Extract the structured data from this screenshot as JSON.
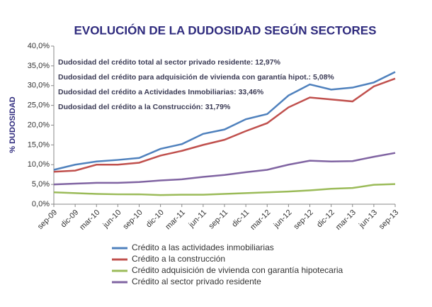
{
  "chart_data": {
    "type": "line",
    "title": "EVOLUCIÓN DE LA DUDOSIDAD SEGÚN SECTORES",
    "y_label": "% DUDOSIDAD",
    "annotations": [
      "Dudosidad del crédito total al sector privado residente: 12,97%",
      "Dudosidad del crédito para adquisición de vivienda con garantía hipot.: 5,08%",
      "Dudosidad del crédito a Actividades Inmobiliarias: 33,46%",
      "Dudosidad del crédito a la Construcción: 31,79%"
    ],
    "categories": [
      "sep-09",
      "dic-09",
      "mar-10",
      "jun-10",
      "sep-10",
      "dic-10",
      "mar-11",
      "jun-11",
      "sep-11",
      "dic-11",
      "mar-12",
      "jun-12",
      "sep-12",
      "dic-12",
      "mar-13",
      "jun-13",
      "sep-13"
    ],
    "series": [
      {
        "name": "Crédito a las actividades inmobiliarias",
        "color": "#4f81bd",
        "values": [
          8.7,
          10,
          10.8,
          11.2,
          11.7,
          14,
          15.2,
          17.8,
          18.9,
          21.5,
          22.8,
          27.5,
          30.3,
          29,
          29.5,
          30.8,
          33.46
        ]
      },
      {
        "name": "Crédito a la construcción",
        "color": "#c0504d",
        "values": [
          8.2,
          8.5,
          10,
          10,
          10.5,
          12.3,
          13.5,
          15,
          16.3,
          18.5,
          20.5,
          24.5,
          27,
          26.5,
          26,
          29.8,
          31.79
        ]
      },
      {
        "name": "Crédito adquisición de vivienda con garantía hipotecaria",
        "color": "#9bbb59",
        "values": [
          3.0,
          2.8,
          2.6,
          2.5,
          2.5,
          2.3,
          2.4,
          2.4,
          2.6,
          2.8,
          3.0,
          3.2,
          3.5,
          3.9,
          4.1,
          4.9,
          5.08
        ]
      },
      {
        "name": "Crédito al sector privado residente",
        "color": "#8064a2",
        "values": [
          5.0,
          5.2,
          5.4,
          5.4,
          5.6,
          6.0,
          6.3,
          6.9,
          7.4,
          8.1,
          8.7,
          10.0,
          11.0,
          10.8,
          10.9,
          12.0,
          12.97
        ]
      }
    ],
    "ylim": [
      0,
      40
    ],
    "yticks": [
      {
        "value": 0,
        "label": "0,0%"
      },
      {
        "value": 5,
        "label": "5,0%"
      },
      {
        "value": 10,
        "label": "10,0%"
      },
      {
        "value": 15,
        "label": "15,0%"
      },
      {
        "value": 20,
        "label": "20,0%"
      },
      {
        "value": 25,
        "label": "25,0%"
      },
      {
        "value": 30,
        "label": "30,0%"
      },
      {
        "value": 35,
        "label": "35,0%"
      },
      {
        "value": 40,
        "label": "40,0%"
      }
    ]
  }
}
